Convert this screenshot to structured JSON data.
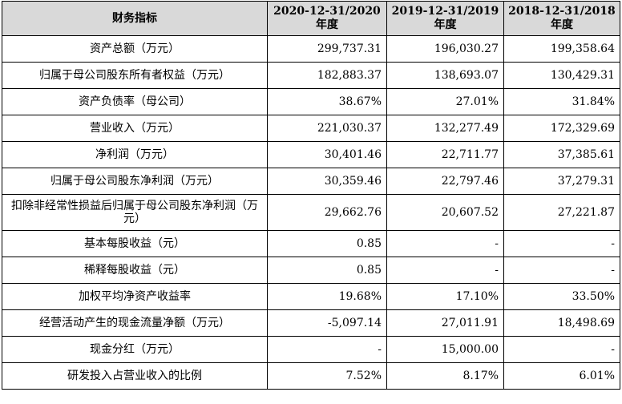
{
  "headers": [
    "财务指标",
    "2020-12-31/2020\n年度",
    "2019-12-31/2019\n年度",
    "2018-12-31/2018\n年度"
  ],
  "rows": [
    {
      "label": "资产总额（万元）",
      "v2020": "299,737.31",
      "v2019": "196,030.27",
      "v2018": "199,358.64"
    },
    {
      "label": "归属于母公司股东所有者权益（万元）",
      "v2020": "182,883.37",
      "v2019": "138,693.07",
      "v2018": "130,429.31"
    },
    {
      "label": "资产负债率（母公司）",
      "v2020": "38.67%",
      "v2019": "27.01%",
      "v2018": "31.84%"
    },
    {
      "label": "营业收入（万元）",
      "v2020": "221,030.37",
      "v2019": "132,277.49",
      "v2018": "172,329.69"
    },
    {
      "label": "净利润（万元）",
      "v2020": "30,401.46",
      "v2019": "22,711.77",
      "v2018": "37,385.61"
    },
    {
      "label": "归属于母公司股东净利润（万元）",
      "v2020": "30,359.46",
      "v2019": "22,797.46",
      "v2018": "37,279.31"
    },
    {
      "label": "扣除非经常性损益后归属于母公司股东净利润（万元）",
      "v2020": "29,662.76",
      "v2019": "20,607.52",
      "v2018": "27,221.87"
    },
    {
      "label": "基本每股收益（元）",
      "v2020": "0.85",
      "v2019": "-",
      "v2018": "-"
    },
    {
      "label": "稀释每股收益（元）",
      "v2020": "0.85",
      "v2019": "-",
      "v2018": "-"
    },
    {
      "label": "加权平均净资产收益率",
      "v2020": "19.68%",
      "v2019": "17.10%",
      "v2018": "33.50%"
    },
    {
      "label": "经营活动产生的现金流量净额（万元）",
      "v2020": "-5,097.14",
      "v2019": "27,011.91",
      "v2018": "18,498.69"
    },
    {
      "label": "现金分红（万元）",
      "v2020": "-",
      "v2019": "15,000.00",
      "v2018": "-"
    },
    {
      "label": "研发投入占营业收入的比例",
      "v2020": "7.52%",
      "v2019": "8.17%",
      "v2018": "6.01%"
    }
  ]
}
